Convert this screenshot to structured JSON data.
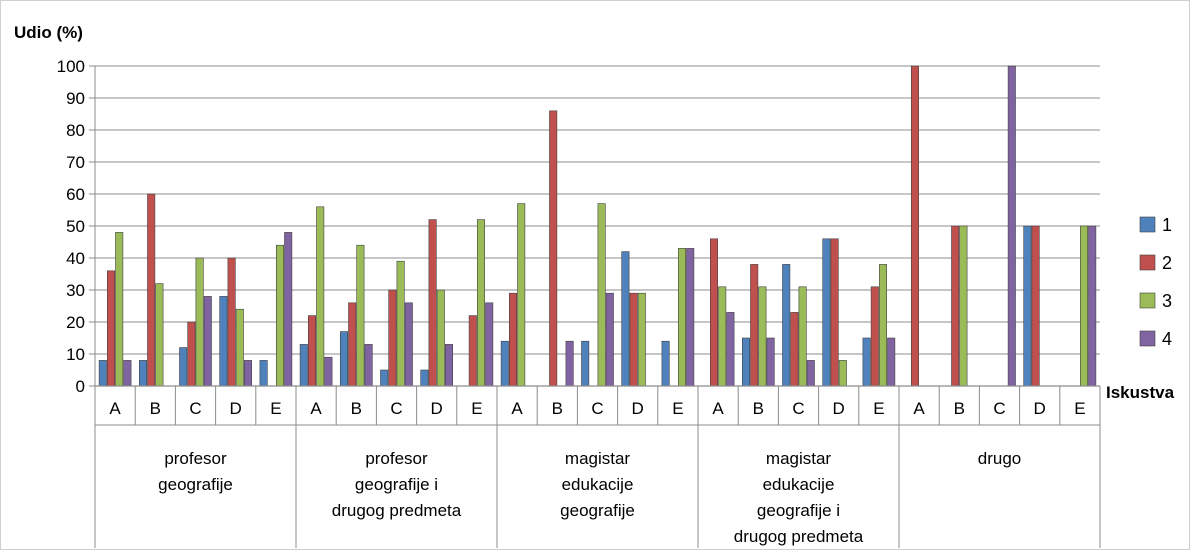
{
  "chart_data": {
    "type": "bar",
    "ylabel": "Udio (%)",
    "xlabel": "Iskustva",
    "ylim": [
      0,
      100
    ],
    "yticks": [
      0,
      10,
      20,
      30,
      40,
      50,
      60,
      70,
      80,
      90,
      100
    ],
    "grid": true,
    "legend_position": "right",
    "groups": [
      "profesor geografije",
      "profesor geografije i drugog predmeta",
      "magistar edukacije geografije",
      "magistar edukacije geografije i drugog predmeta",
      "drugo"
    ],
    "group_label_lines": [
      [
        "profesor",
        "geografije"
      ],
      [
        "profesor",
        "geografije i",
        "drugog predmeta"
      ],
      [
        "magistar",
        "edukacije",
        "geografije"
      ],
      [
        "magistar",
        "edukacije",
        "geografije i",
        "drugog predmeta"
      ],
      [
        "drugo"
      ]
    ],
    "categories": [
      "A",
      "B",
      "C",
      "D",
      "E"
    ],
    "series": [
      {
        "name": "1",
        "color": "#4F81BD",
        "values": [
          [
            8,
            8,
            12,
            28,
            8
          ],
          [
            13,
            17,
            5,
            5,
            0
          ],
          [
            14,
            0,
            14,
            42,
            14
          ],
          [
            0,
            15,
            38,
            46,
            15
          ],
          [
            0,
            0,
            0,
            50,
            0
          ]
        ]
      },
      {
        "name": "2",
        "color": "#C0504D",
        "values": [
          [
            36,
            60,
            20,
            40,
            0
          ],
          [
            22,
            26,
            30,
            52,
            22
          ],
          [
            29,
            86,
            0,
            29,
            0
          ],
          [
            46,
            38,
            23,
            46,
            31
          ],
          [
            100,
            50,
            0,
            50,
            0
          ]
        ]
      },
      {
        "name": "3",
        "color": "#9BBB59",
        "values": [
          [
            48,
            32,
            40,
            24,
            44
          ],
          [
            56,
            44,
            39,
            30,
            52
          ],
          [
            57,
            0,
            57,
            29,
            43
          ],
          [
            31,
            31,
            31,
            8,
            38
          ],
          [
            0,
            50,
            0,
            0,
            50
          ]
        ]
      },
      {
        "name": "4",
        "color": "#8064A2",
        "values": [
          [
            8,
            0,
            28,
            8,
            48
          ],
          [
            9,
            13,
            26,
            13,
            26
          ],
          [
            0,
            14,
            29,
            0,
            43
          ],
          [
            23,
            15,
            8,
            0,
            15
          ],
          [
            0,
            0,
            100,
            0,
            50
          ]
        ]
      }
    ]
  }
}
